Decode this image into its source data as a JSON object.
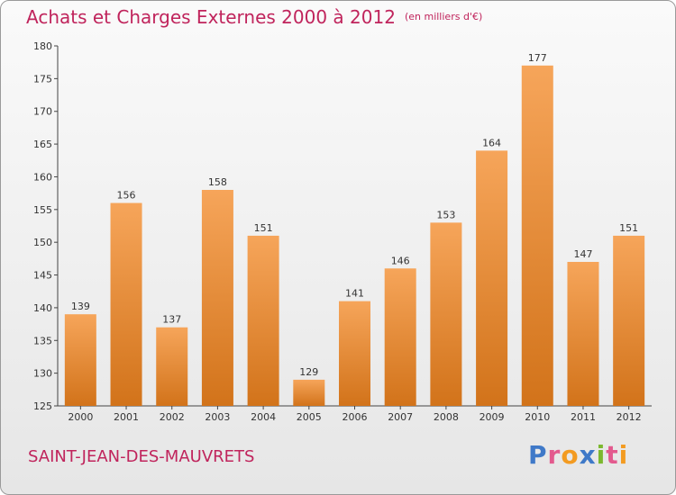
{
  "title": "Achats et Charges Externes 2000 à 2012",
  "unit": "(en milliers d'€)",
  "place": "SAINT-JEAN-DES-MAUVRETS",
  "logo": {
    "letters": [
      {
        "ch": "P",
        "color": "#3f79c8"
      },
      {
        "ch": "r",
        "color": "#e35a8e"
      },
      {
        "ch": "o",
        "color": "#f39b21"
      },
      {
        "ch": "x",
        "color": "#3f79c8"
      },
      {
        "ch": "i",
        "color": "#7cb82f"
      },
      {
        "ch": "t",
        "color": "#e35a8e"
      },
      {
        "ch": "i",
        "color": "#f39b21"
      }
    ]
  },
  "colors": {
    "bar_top": "#f6a55a",
    "bar_bottom": "#d2731a",
    "title": "#c0245c"
  },
  "chart_data": {
    "type": "bar",
    "categories": [
      "2000",
      "2001",
      "2002",
      "2003",
      "2004",
      "2005",
      "2006",
      "2007",
      "2008",
      "2009",
      "2010",
      "2011",
      "2012"
    ],
    "values": [
      139,
      156,
      137,
      158,
      151,
      129,
      141,
      146,
      153,
      164,
      177,
      147,
      151
    ],
    "ylim": [
      125,
      180
    ],
    "yticks": [
      125,
      130,
      135,
      140,
      145,
      150,
      155,
      160,
      165,
      170,
      175,
      180
    ],
    "grid": false,
    "xlabel": "",
    "ylabel": ""
  }
}
